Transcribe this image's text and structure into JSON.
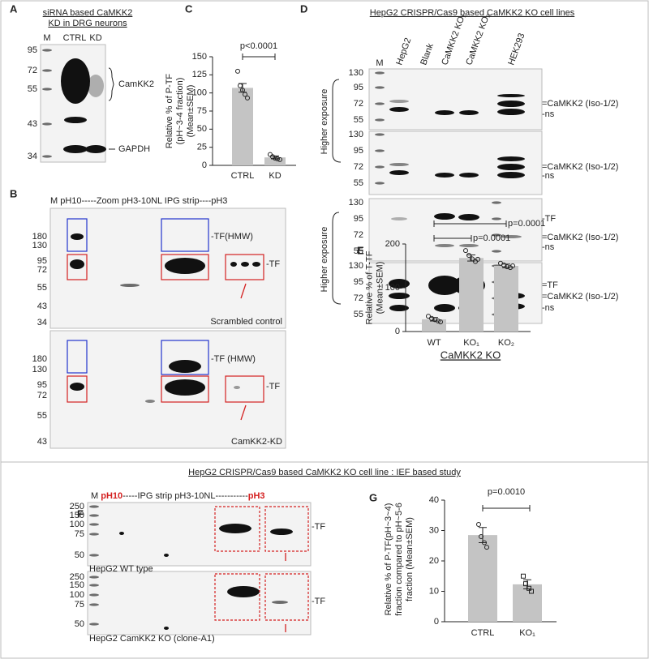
{
  "panels": {
    "a": {
      "label": "A",
      "title": [
        "siRNA based CaMKK2",
        "KD in DRG neurons"
      ],
      "lanes": [
        "M",
        "CTRL",
        "KD"
      ],
      "markers": [
        95,
        72,
        55,
        43,
        34
      ],
      "bands": [
        "CamKK2",
        "GAPDH"
      ]
    },
    "b": {
      "label": "B",
      "header": "M pH10-----Zoom pH3-10NL IPG strip----pH3",
      "upper": {
        "markers": [
          180,
          130,
          95,
          72,
          55,
          43,
          34
        ],
        "hmw": "-TF(HMW)",
        "tf": "-TF",
        "caption": "Scrambled control"
      },
      "lower": {
        "markers": [
          180,
          130,
          95,
          72,
          55,
          43
        ],
        "hmw": "-TF (HMW)",
        "tf": "-TF",
        "caption": "CamKK2-KD"
      }
    },
    "d": {
      "label": "D",
      "title": "HepG2 CRISPR/Cas9 based CaMKK2 KO cell lines",
      "lanes": [
        "M",
        "HepG2",
        "Blank",
        "CaMKK2 KO₁",
        "CaMKK2 KO₂",
        "HEK293"
      ],
      "blots": [
        {
          "markers": [
            130,
            95,
            72,
            55
          ],
          "labels": [
            "=CaMKK2 (Iso-1/2)",
            "-ns"
          ]
        },
        {
          "markers": [
            130,
            95,
            72,
            55
          ],
          "labels": [
            "=CaMKK2 (Iso-1/2)",
            "-ns"
          ]
        },
        {
          "markers": [
            130,
            95,
            72,
            55
          ],
          "labels": [
            "-TF",
            "=CaMKK2 (Iso-1/2)",
            "-ns"
          ]
        },
        {
          "markers": [
            130,
            95,
            72,
            55
          ],
          "labels": [
            "=TF",
            "=CaMKK2 (Iso-1/2)",
            "-ns"
          ]
        }
      ],
      "exposure": [
        "Higher exposure",
        "Higher exposure"
      ]
    },
    "f": {
      "label": "F",
      "title": "HepG2 CRISPR/Cas9 based CaMKK2 KO cell line : IEF based study",
      "header": [
        "M",
        "pH10",
        "-----IPG strip pH3-10NL-----------",
        "pH3"
      ],
      "upper": {
        "markers": [
          250,
          150,
          100,
          75,
          50
        ],
        "tf": "-TF",
        "caption": "HepG2 WT type"
      },
      "lower": {
        "markers": [
          250,
          150,
          100,
          75,
          50
        ],
        "tf": "-TF",
        "caption": "HepG2 CamKK2 KO (clone-A1)"
      }
    }
  },
  "chart_data": [
    {
      "type": "bar",
      "label": "C",
      "ylabel": [
        "Relative % of P-TF",
        "(pH~3-4 fraction)",
        "(Mean±SEM)"
      ],
      "categories": [
        "CTRL",
        "KD"
      ],
      "values": [
        107,
        11
      ],
      "errors": [
        6,
        2
      ],
      "points": [
        [
          130,
          110,
          104,
          98,
          93
        ],
        [
          15,
          12,
          10,
          9,
          8
        ]
      ],
      "point_shapes": [
        "circle",
        "circle"
      ],
      "color": "#c4c4c4",
      "ylim": [
        0,
        150
      ],
      "yticks": [
        0,
        25,
        50,
        75,
        100,
        125,
        150
      ],
      "annotations": [
        "p<0.0001"
      ]
    },
    {
      "type": "bar",
      "label": "E",
      "ylabel": [
        "Relative % of T-TF",
        "(Mean±SEM)"
      ],
      "categories": [
        "WT",
        "KO₁",
        "KO₂"
      ],
      "xlabel": "CaMKK2 KO",
      "values": [
        28,
        168,
        150
      ],
      "errors": [
        4,
        7,
        4
      ],
      "points": [
        [
          35,
          30,
          27,
          24,
          22
        ],
        [
          185,
          174,
          166,
          160,
          165
        ],
        [
          156,
          152,
          148,
          146,
          150
        ]
      ],
      "point_shapes": [
        "circle",
        "circle",
        "circle"
      ],
      "color": "#c4c4c4",
      "ylim": [
        0,
        200
      ],
      "yticks": [
        0,
        100,
        200
      ],
      "annotations": [
        "p=0.0001",
        "p=0.0001"
      ]
    },
    {
      "type": "bar",
      "label": "G",
      "ylabel": [
        "Relative % of P-TF(pH~3~4)",
        "fraction compared to pH~5-6",
        "fraction (Mean±SEM)"
      ],
      "categories": [
        "CTRL",
        "KO₁"
      ],
      "values": [
        28.5,
        12.3
      ],
      "errors": [
        2.5,
        1.5
      ],
      "points": [
        [
          32,
          28,
          26,
          24.5
        ],
        [
          15,
          12.5,
          11,
          10
        ]
      ],
      "point_shapes": [
        "circle",
        "square"
      ],
      "color": "#c4c4c4",
      "ylim": [
        0,
        40
      ],
      "yticks": [
        0,
        10,
        20,
        30,
        40
      ],
      "annotations": [
        "p=0.0010"
      ]
    }
  ]
}
